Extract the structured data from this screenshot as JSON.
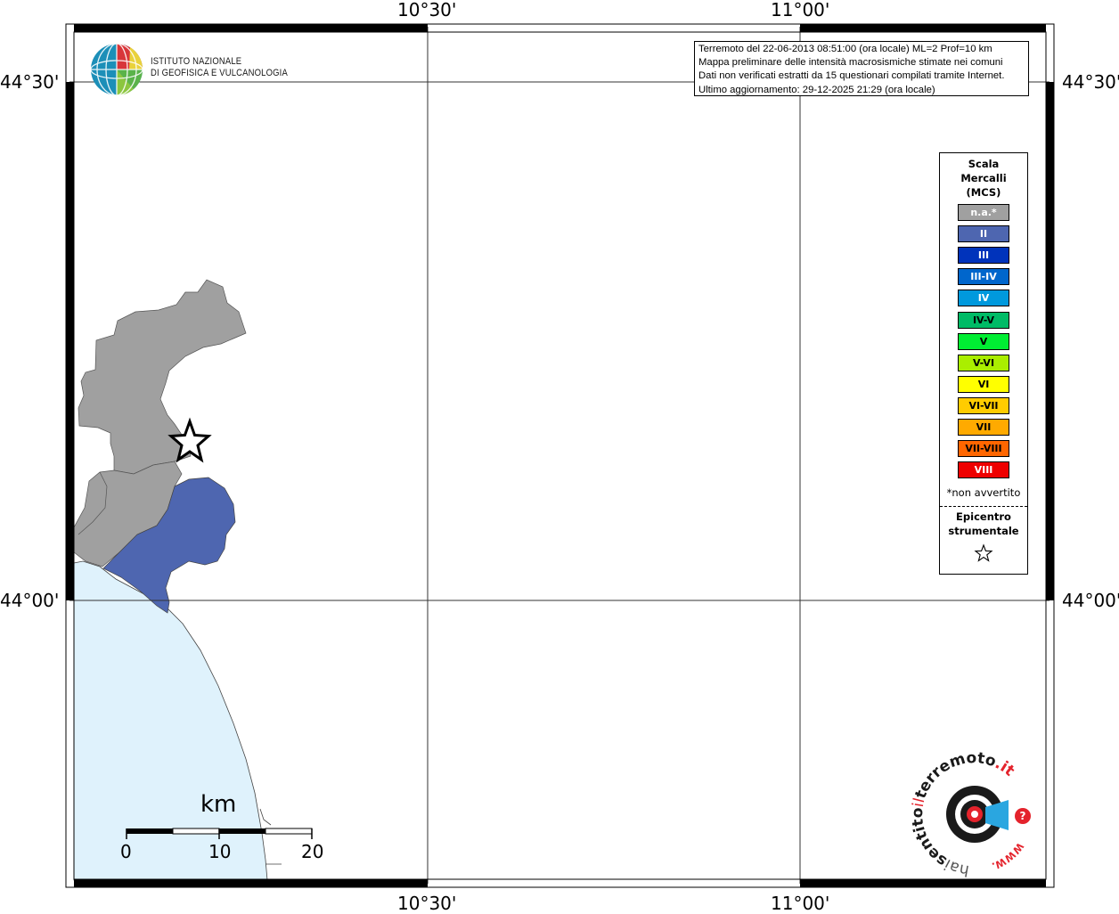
{
  "info": {
    "line1": "Terremoto del 22-06-2013 08:51:00 (ora locale) ML=2 Prof=10 km",
    "line2": "Mappa preliminare delle intensità macrosismiche stimate nei comuni",
    "line3": "Dati non verificati estratti da 15 questionari compilati tramite Internet.",
    "line4": "Ultimo aggiornamento: 29-12-2025 21:29 (ora locale)"
  },
  "logo": {
    "line1": "ISTITUTO NAZIONALE",
    "line2": "DI GEOFISICA E VULCANOLOGIA",
    "brand_text": "haisentitoilterremoto.it",
    "brand_prefix": "hai",
    "brand_middle": "sentito",
    "brand_il": "il",
    "brand_word": "terremoto",
    "brand_tld": ".it",
    "brand_www": "WWW.",
    "brand_question": "?"
  },
  "axes": {
    "lon_top": [
      "10°30'",
      "11°00'"
    ],
    "lon_bottom": [
      "10°30'",
      "11°00'"
    ],
    "lat_left": [
      "44°30'",
      "44°00'"
    ],
    "lat_right": [
      "44°30'",
      "44°00'"
    ]
  },
  "legend": {
    "title_line1": "Scala",
    "title_line2": "Mercalli",
    "title_line3": "(MCS)",
    "items": [
      {
        "label": "n.a.*",
        "color": "#a0a0a0",
        "text_color": "#ffffff"
      },
      {
        "label": "II",
        "color": "#4e66b0",
        "text_color": "#ffffff"
      },
      {
        "label": "III",
        "color": "#0033bb",
        "text_color": "#ffffff"
      },
      {
        "label": "III-IV",
        "color": "#0066cc",
        "text_color": "#ffffff"
      },
      {
        "label": "IV",
        "color": "#0099dd",
        "text_color": "#ffffff"
      },
      {
        "label": "IV-V",
        "color": "#00bb66",
        "text_color": "#000000"
      },
      {
        "label": "V",
        "color": "#00ee33",
        "text_color": "#000000"
      },
      {
        "label": "V-VI",
        "color": "#aaee00",
        "text_color": "#000000"
      },
      {
        "label": "VI",
        "color": "#ffff00",
        "text_color": "#000000"
      },
      {
        "label": "VI-VII",
        "color": "#ffcc00",
        "text_color": "#000000"
      },
      {
        "label": "VII",
        "color": "#ffaa00",
        "text_color": "#000000"
      },
      {
        "label": "VII-VIII",
        "color": "#ff6600",
        "text_color": "#000000"
      },
      {
        "label": "VIII",
        "color": "#ee0000",
        "text_color": "#ffffff"
      }
    ],
    "note": "*non avvertito",
    "epicenter_line1": "Epicentro",
    "epicenter_line2": "strumentale"
  },
  "scale_bar": {
    "unit": "km",
    "ticks": [
      "0",
      "10",
      "20"
    ]
  },
  "colors": {
    "sea": "#dff2fc",
    "municipality_na": "#a0a0a0",
    "municipality_ii": "#4e66b0"
  }
}
